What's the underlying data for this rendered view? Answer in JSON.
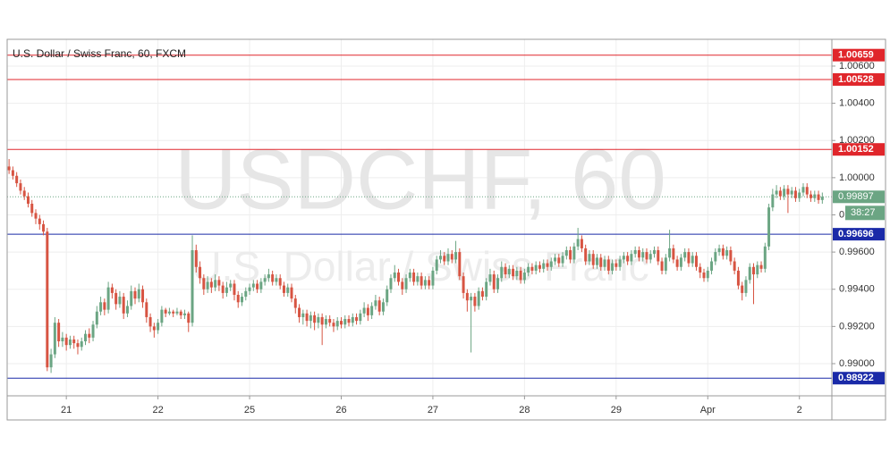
{
  "chart_data": {
    "type": "candlestick",
    "title": "U.S. Dollar / Swiss Franc, 60, FXCM",
    "watermark": {
      "symbol": "USDCHF, 60",
      "description": "U.S. Dollar / Swiss Franc"
    },
    "xlim": [
      -0.5,
      215.5
    ],
    "xticks": [
      {
        "value": 15,
        "label": "21"
      },
      {
        "value": 39,
        "label": "22"
      },
      {
        "value": 63,
        "label": "25"
      },
      {
        "value": 87,
        "label": "26"
      },
      {
        "value": 111,
        "label": "27"
      },
      {
        "value": 135,
        "label": "28"
      },
      {
        "value": 159,
        "label": "29"
      },
      {
        "value": 183,
        "label": "Apr"
      },
      {
        "value": 207,
        "label": "2"
      }
    ],
    "ylim": [
      0.98827,
      1.00744
    ],
    "yticks": [
      {
        "value": 1.006,
        "label": "1.00600"
      },
      {
        "value": 1.004,
        "label": "1.00400"
      },
      {
        "value": 1.002,
        "label": "1.00200"
      },
      {
        "value": 1.0,
        "label": "1.00000"
      },
      {
        "value": 0.998,
        "label": "0.99800"
      },
      {
        "value": 0.996,
        "label": "0.99600"
      },
      {
        "value": 0.994,
        "label": "0.99400"
      },
      {
        "value": 0.992,
        "label": "0.99200"
      },
      {
        "value": 0.99,
        "label": "0.99000"
      }
    ],
    "grid": true,
    "series": [
      {
        "up_color": "#6ba583",
        "down_color": "#d75442",
        "open": [
          1.0006,
          1.0004,
          1.0001,
          0.9997,
          0.9993,
          0.999,
          0.9986,
          0.9981,
          0.9978,
          0.9975,
          0.9971,
          0.9898,
          0.9905,
          0.9922,
          0.9912,
          0.9914,
          0.991,
          0.9913,
          0.9911,
          0.9909,
          0.9912,
          0.9916,
          0.9914,
          0.9921,
          0.9928,
          0.9933,
          0.9929,
          0.9941,
          0.9938,
          0.9932,
          0.9936,
          0.9927,
          0.9931,
          0.9939,
          0.9935,
          0.994,
          0.9933,
          0.9925,
          0.992,
          0.9918,
          0.9922,
          0.9929,
          0.9927,
          0.9928,
          0.9927,
          0.9928,
          0.9926,
          0.9927,
          0.9922,
          0.9961,
          0.9952,
          0.9946,
          0.994,
          0.9944,
          0.9941,
          0.9945,
          0.9942,
          0.9938,
          0.9941,
          0.9943,
          0.9937,
          0.9933,
          0.9936,
          0.9939,
          0.9941,
          0.9943,
          0.994,
          0.9944,
          0.9946,
          0.9948,
          0.9944,
          0.9946,
          0.9942,
          0.9938,
          0.9941,
          0.9935,
          0.993,
          0.9925,
          0.9927,
          0.9923,
          0.9926,
          0.9922,
          0.9925,
          0.9921,
          0.9924,
          0.9922,
          0.992,
          0.9923,
          0.9921,
          0.9924,
          0.9922,
          0.9925,
          0.9923,
          0.9927,
          0.993,
          0.9926,
          0.9931,
          0.9934,
          0.9928,
          0.9933,
          0.994,
          0.9946,
          0.9949,
          0.9944,
          0.994,
          0.9946,
          0.9949,
          0.9944,
          0.9947,
          0.9942,
          0.9945,
          0.9942,
          0.995,
          0.9956,
          0.9958,
          0.9955,
          0.9959,
          0.9956,
          0.996,
          0.9947,
          0.9938,
          0.9934,
          0.9936,
          0.9931,
          0.9939,
          0.9936,
          0.9944,
          0.9948,
          0.994,
          0.9946,
          0.9952,
          0.9948,
          0.9951,
          0.9947,
          0.995,
          0.9945,
          0.9949,
          0.9952,
          0.995,
          0.9953,
          0.9951,
          0.9954,
          0.9952,
          0.9955,
          0.9957,
          0.9954,
          0.9958,
          0.9961,
          0.9956,
          0.9963,
          0.9967,
          0.9962,
          0.9955,
          0.9959,
          0.9953,
          0.9957,
          0.9952,
          0.9956,
          0.995,
          0.9954,
          0.9952,
          0.9956,
          0.9958,
          0.9955,
          0.9959,
          0.9961,
          0.9957,
          0.996,
          0.9956,
          0.9959,
          0.9961,
          0.9955,
          0.995,
          0.9957,
          0.9962,
          0.9956,
          0.9952,
          0.9957,
          0.996,
          0.9954,
          0.9958,
          0.9952,
          0.9949,
          0.9946,
          0.995,
          0.9955,
          0.996,
          0.9962,
          0.9958,
          0.9961,
          0.9955,
          0.995,
          0.9942,
          0.9938,
          0.9945,
          0.9952,
          0.9948,
          0.9953,
          0.9951,
          0.9963,
          0.9984,
          0.9991,
          0.9993,
          0.999,
          0.9994,
          0.9991,
          0.9993,
          0.9989,
          0.9992,
          0.9995,
          0.9991,
          0.9989,
          0.9991,
          0.9988
        ],
        "high": [
          1.001,
          1.0006,
          1.0003,
          0.9999,
          0.9995,
          0.9992,
          0.9988,
          0.9983,
          0.998,
          0.9977,
          0.9973,
          0.9908,
          0.9925,
          0.9924,
          0.9917,
          0.9916,
          0.9915,
          0.9915,
          0.9913,
          0.9914,
          0.9918,
          0.9919,
          0.9923,
          0.9931,
          0.9936,
          0.9935,
          0.9944,
          0.9943,
          0.994,
          0.9939,
          0.9938,
          0.9934,
          0.9942,
          0.9941,
          0.9943,
          0.9942,
          0.9935,
          0.9927,
          0.9922,
          0.9924,
          0.9931,
          0.993,
          0.993,
          0.9929,
          0.993,
          0.9929,
          0.9929,
          0.9928,
          0.9969,
          0.9964,
          0.9955,
          0.9948,
          0.9947,
          0.9946,
          0.9948,
          0.9947,
          0.9944,
          0.9944,
          0.9945,
          0.9945,
          0.9939,
          0.9938,
          0.9941,
          0.9943,
          0.9945,
          0.9945,
          0.9946,
          0.9948,
          0.9951,
          0.995,
          0.9948,
          0.9948,
          0.9944,
          0.9943,
          0.9943,
          0.9937,
          0.9932,
          0.9929,
          0.9929,
          0.9928,
          0.9928,
          0.9927,
          0.9927,
          0.9926,
          0.9926,
          0.9924,
          0.9925,
          0.9925,
          0.9926,
          0.9926,
          0.9927,
          0.9927,
          0.9929,
          0.9933,
          0.9932,
          0.9933,
          0.9937,
          0.9936,
          0.9935,
          0.9942,
          0.9948,
          0.9953,
          0.9951,
          0.9946,
          0.9948,
          0.9951,
          0.9951,
          0.9949,
          0.9949,
          0.9947,
          0.9947,
          0.9952,
          0.9958,
          0.9961,
          0.996,
          0.9962,
          0.9961,
          0.9966,
          0.9962,
          0.9949,
          0.994,
          0.9938,
          0.9938,
          0.9941,
          0.9941,
          0.9946,
          0.9951,
          0.995,
          0.9948,
          0.9955,
          0.9954,
          0.9953,
          0.9953,
          0.9952,
          0.9952,
          0.9951,
          0.9954,
          0.9954,
          0.9955,
          0.9955,
          0.9956,
          0.9956,
          0.9957,
          0.9959,
          0.9959,
          0.996,
          0.9963,
          0.9963,
          0.9965,
          0.9973,
          0.9969,
          0.9964,
          0.9961,
          0.9961,
          0.9959,
          0.9959,
          0.9958,
          0.9958,
          0.9956,
          0.9956,
          0.9958,
          0.996,
          0.996,
          0.9961,
          0.9963,
          0.9963,
          0.9962,
          0.9962,
          0.9961,
          0.9963,
          0.9963,
          0.9957,
          0.9959,
          0.9972,
          0.9964,
          0.9958,
          0.9959,
          0.9962,
          0.9962,
          0.996,
          0.996,
          0.9954,
          0.9951,
          0.9952,
          0.9957,
          0.9962,
          0.9964,
          0.9964,
          0.9963,
          0.9963,
          0.9957,
          0.9952,
          0.9944,
          0.9947,
          0.9954,
          0.9954,
          0.9955,
          0.9955,
          0.9965,
          0.9986,
          0.9994,
          0.9996,
          0.9995,
          0.9996,
          0.9996,
          0.9995,
          0.9995,
          0.9994,
          0.9997,
          0.9997,
          0.9993,
          0.9993,
          0.9993,
          0.9992
        ],
        "low": [
          1.0002,
          0.9999,
          0.9995,
          0.9991,
          0.9988,
          0.9984,
          0.9979,
          0.9975,
          0.9972,
          0.9969,
          0.9896,
          0.9895,
          0.9903,
          0.9909,
          0.9909,
          0.9907,
          0.9908,
          0.9908,
          0.9905,
          0.9907,
          0.991,
          0.9911,
          0.9912,
          0.9919,
          0.9926,
          0.9926,
          0.9927,
          0.9935,
          0.9929,
          0.993,
          0.9924,
          0.9925,
          0.9929,
          0.9932,
          0.9933,
          0.993,
          0.9922,
          0.9917,
          0.9914,
          0.9916,
          0.992,
          0.9925,
          0.9926,
          0.9925,
          0.9926,
          0.9924,
          0.9924,
          0.9917,
          0.992,
          0.9949,
          0.9943,
          0.9937,
          0.9938,
          0.9938,
          0.9939,
          0.9939,
          0.9935,
          0.9936,
          0.9939,
          0.9934,
          0.993,
          0.9931,
          0.9934,
          0.9937,
          0.9939,
          0.9938,
          0.9938,
          0.9942,
          0.9944,
          0.9942,
          0.9942,
          0.994,
          0.9936,
          0.9936,
          0.9933,
          0.9927,
          0.9922,
          0.9921,
          0.992,
          0.9919,
          0.9918,
          0.9919,
          0.991,
          0.9919,
          0.992,
          0.9917,
          0.9918,
          0.9919,
          0.9919,
          0.992,
          0.992,
          0.9921,
          0.9921,
          0.9925,
          0.9923,
          0.9924,
          0.9929,
          0.9926,
          0.9926,
          0.9931,
          0.9938,
          0.9944,
          0.9942,
          0.9937,
          0.9938,
          0.9944,
          0.9942,
          0.9942,
          0.994,
          0.994,
          0.994,
          0.994,
          0.9948,
          0.9954,
          0.9953,
          0.9953,
          0.9954,
          0.9954,
          0.9945,
          0.9935,
          0.9928,
          0.9906,
          0.9928,
          0.9929,
          0.9934,
          0.9934,
          0.9942,
          0.9938,
          0.9938,
          0.9944,
          0.9946,
          0.9946,
          0.9945,
          0.9945,
          0.9943,
          0.9943,
          0.9947,
          0.9948,
          0.9948,
          0.9949,
          0.9949,
          0.995,
          0.995,
          0.9953,
          0.9952,
          0.9952,
          0.9956,
          0.9954,
          0.9954,
          0.9961,
          0.996,
          0.9953,
          0.9953,
          0.9951,
          0.9951,
          0.995,
          0.995,
          0.9948,
          0.9948,
          0.995,
          0.995,
          0.9954,
          0.9953,
          0.9953,
          0.9957,
          0.9955,
          0.9955,
          0.9954,
          0.9954,
          0.9957,
          0.9953,
          0.9948,
          0.9948,
          0.9955,
          0.9954,
          0.995,
          0.995,
          0.9955,
          0.9952,
          0.9952,
          0.995,
          0.9946,
          0.9944,
          0.9944,
          0.9948,
          0.9953,
          0.9958,
          0.9956,
          0.9956,
          0.9953,
          0.9948,
          0.994,
          0.9934,
          0.9936,
          0.9943,
          0.9932,
          0.9946,
          0.9949,
          0.9949,
          0.9961,
          0.9982,
          0.9989,
          0.9988,
          0.9988,
          0.9981,
          0.9989,
          0.9987,
          0.9987,
          0.999,
          0.9989,
          0.9987,
          0.9987,
          0.9986,
          0.9986
        ],
        "close": [
          1.0004,
          1.0001,
          0.9997,
          0.9993,
          0.999,
          0.9986,
          0.9981,
          0.9978,
          0.9975,
          0.9971,
          0.9898,
          0.9905,
          0.9922,
          0.9912,
          0.9914,
          0.991,
          0.9913,
          0.9911,
          0.9909,
          0.9912,
          0.9916,
          0.9914,
          0.9921,
          0.9928,
          0.9933,
          0.9929,
          0.9941,
          0.9938,
          0.9932,
          0.9936,
          0.9927,
          0.9931,
          0.9939,
          0.9935,
          0.994,
          0.9933,
          0.9925,
          0.992,
          0.9918,
          0.9922,
          0.9929,
          0.9927,
          0.9928,
          0.9927,
          0.9928,
          0.9926,
          0.9927,
          0.9922,
          0.9961,
          0.9952,
          0.9946,
          0.994,
          0.9944,
          0.9941,
          0.9945,
          0.9942,
          0.9938,
          0.9941,
          0.9943,
          0.9937,
          0.9933,
          0.9936,
          0.9939,
          0.9941,
          0.9943,
          0.994,
          0.9944,
          0.9946,
          0.9948,
          0.9944,
          0.9946,
          0.9942,
          0.9938,
          0.9941,
          0.9935,
          0.993,
          0.9925,
          0.9927,
          0.9923,
          0.9926,
          0.9922,
          0.9925,
          0.9921,
          0.9924,
          0.9922,
          0.992,
          0.9923,
          0.9921,
          0.9924,
          0.9922,
          0.9925,
          0.9923,
          0.9927,
          0.993,
          0.9926,
          0.9931,
          0.9934,
          0.9928,
          0.9933,
          0.994,
          0.9946,
          0.9949,
          0.9944,
          0.994,
          0.9946,
          0.9949,
          0.9944,
          0.9947,
          0.9942,
          0.9945,
          0.9942,
          0.995,
          0.9956,
          0.9958,
          0.9955,
          0.9959,
          0.9956,
          0.996,
          0.9947,
          0.9938,
          0.9934,
          0.9936,
          0.9931,
          0.9939,
          0.9936,
          0.9944,
          0.9948,
          0.994,
          0.9946,
          0.9952,
          0.9948,
          0.9951,
          0.9947,
          0.995,
          0.9945,
          0.9949,
          0.9952,
          0.995,
          0.9953,
          0.9951,
          0.9954,
          0.9952,
          0.9955,
          0.9957,
          0.9954,
          0.9958,
          0.9961,
          0.9956,
          0.9963,
          0.9967,
          0.9962,
          0.9955,
          0.9959,
          0.9953,
          0.9957,
          0.9952,
          0.9956,
          0.995,
          0.9954,
          0.9952,
          0.9956,
          0.9958,
          0.9955,
          0.9959,
          0.9961,
          0.9957,
          0.996,
          0.9956,
          0.9959,
          0.9961,
          0.9955,
          0.995,
          0.9957,
          0.9962,
          0.9956,
          0.9952,
          0.9957,
          0.996,
          0.9954,
          0.9958,
          0.9952,
          0.9949,
          0.9946,
          0.995,
          0.9955,
          0.996,
          0.9962,
          0.9958,
          0.9961,
          0.9955,
          0.995,
          0.9942,
          0.9938,
          0.9945,
          0.9952,
          0.9948,
          0.9953,
          0.9951,
          0.9963,
          0.9984,
          0.9991,
          0.9993,
          0.999,
          0.9994,
          0.9991,
          0.9993,
          0.9989,
          0.9992,
          0.9995,
          0.9991,
          0.9989,
          0.9991,
          0.9988,
          0.99897
        ]
      }
    ],
    "levels": [
      {
        "value": 1.00659,
        "color": "#e0262b"
      },
      {
        "value": 1.00528,
        "color": "#e0262b"
      },
      {
        "value": 1.00152,
        "color": "#e0262b"
      },
      {
        "value": 0.99696,
        "color": "#1a2aa8"
      },
      {
        "value": 0.98922,
        "color": "#1a2aa8"
      }
    ],
    "last_price": {
      "value": 0.99897,
      "countdown": "38:27",
      "color": "#6ba583"
    }
  }
}
